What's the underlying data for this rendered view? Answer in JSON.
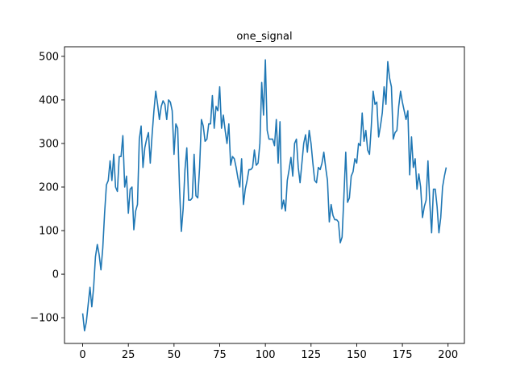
{
  "chart_data": {
    "type": "line",
    "title": "one_signal",
    "xlabel": "",
    "ylabel": "",
    "xlim": [
      -9.95,
      208.95
    ],
    "ylim": [
      -159,
      522
    ],
    "xticks": [
      0,
      25,
      50,
      75,
      100,
      125,
      150,
      175,
      200
    ],
    "xtick_labels": [
      "0",
      "25",
      "50",
      "75",
      "100",
      "125",
      "150",
      "175",
      "200"
    ],
    "yticks": [
      -100,
      0,
      100,
      200,
      300,
      400,
      500
    ],
    "ytick_labels": [
      "−100",
      "0",
      "100",
      "200",
      "300",
      "400",
      "500"
    ],
    "grid": false,
    "line_color": "#1f77b4",
    "series": [
      {
        "values": [
          -90,
          -130,
          -110,
          -70,
          -30,
          -75,
          -30,
          40,
          68,
          45,
          10,
          60,
          140,
          205,
          215,
          260,
          215,
          275,
          200,
          190,
          270,
          270,
          318,
          200,
          225,
          140,
          195,
          200,
          102,
          145,
          160,
          310,
          340,
          245,
          290,
          310,
          325,
          255,
          320,
          375,
          420,
          390,
          355,
          385,
          398,
          390,
          355,
          400,
          395,
          375,
          275,
          345,
          335,
          200,
          98,
          150,
          240,
          290,
          170,
          170,
          175,
          275,
          180,
          175,
          245,
          355,
          340,
          305,
          310,
          345,
          345,
          410,
          335,
          385,
          375,
          430,
          335,
          365,
          330,
          300,
          345,
          250,
          270,
          265,
          245,
          220,
          200,
          265,
          160,
          195,
          215,
          240,
          240,
          245,
          285,
          250,
          255,
          300,
          440,
          365,
          492,
          330,
          310,
          310,
          310,
          295,
          355,
          255,
          350,
          150,
          170,
          145,
          215,
          240,
          268,
          225,
          300,
          310,
          245,
          210,
          255,
          300,
          320,
          280,
          330,
          300,
          255,
          215,
          210,
          245,
          240,
          255,
          280,
          245,
          215,
          120,
          160,
          135,
          125,
          125,
          120,
          72,
          85,
          180,
          280,
          165,
          175,
          225,
          235,
          265,
          255,
          300,
          295,
          370,
          305,
          330,
          285,
          275,
          340,
          420,
          390,
          395,
          315,
          340,
          370,
          430,
          390,
          488,
          450,
          430,
          310,
          325,
          330,
          385,
          420,
          395,
          375,
          355,
          375,
          228,
          315,
          245,
          265,
          195,
          230,
          200,
          130,
          155,
          170,
          260,
          165,
          95,
          195,
          195,
          155,
          95,
          130,
          200,
          225,
          245
        ]
      }
    ]
  }
}
